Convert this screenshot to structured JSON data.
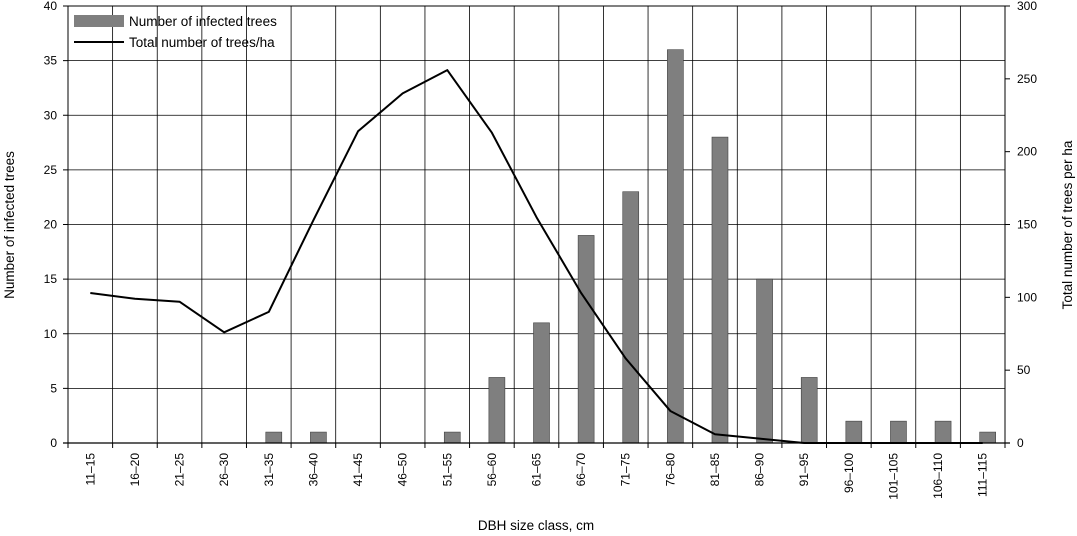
{
  "chart_data": {
    "type": "bar",
    "categories": [
      "11–15",
      "16–20",
      "21–25",
      "26–30",
      "31–35",
      "36–40",
      "41–45",
      "46–50",
      "51–55",
      "56–60",
      "61–65",
      "66–70",
      "71–75",
      "76–80",
      "81–85",
      "86–90",
      "91–95",
      "96–100",
      "101–105",
      "106–110",
      "111–115"
    ],
    "series": [
      {
        "name": "Number of infected trees",
        "type": "bar",
        "axis": "left",
        "color": "#7f7f7f",
        "values": [
          0,
          0,
          0,
          0,
          1,
          1,
          0,
          0,
          1,
          6,
          11,
          19,
          23,
          36,
          28,
          15,
          6,
          2,
          2,
          2,
          1
        ]
      },
      {
        "name": "Total number of trees/ha",
        "type": "line",
        "axis": "right",
        "color": "#000000",
        "values": [
          103,
          99,
          97,
          76,
          90,
          153,
          214,
          240,
          256,
          213,
          155,
          103,
          58,
          22,
          6,
          3,
          0,
          0,
          0,
          0,
          0
        ]
      }
    ],
    "xlabel": "DBH size class, cm",
    "ylabel": "Number of infected trees",
    "y2label": "Total number of trees per ha",
    "ylim": [
      0,
      40
    ],
    "y2lim": [
      0,
      300
    ],
    "yticks": [
      0,
      5,
      10,
      15,
      20,
      25,
      30,
      35,
      40
    ],
    "y2ticks": [
      0,
      50,
      100,
      150,
      200,
      250,
      300
    ],
    "grid": true,
    "legend": "top-left"
  }
}
